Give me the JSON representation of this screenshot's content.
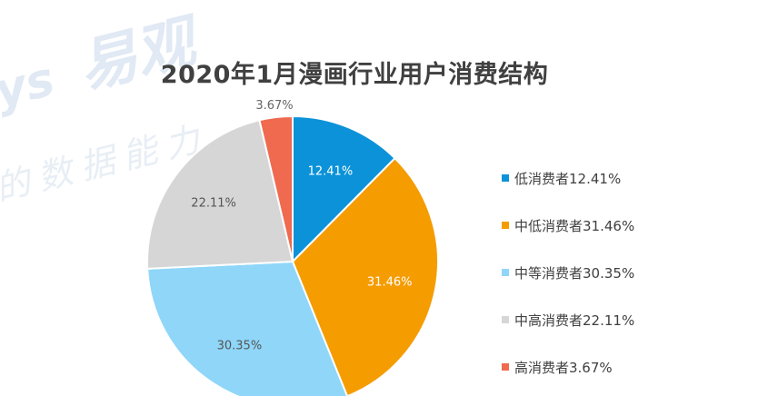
{
  "watermark": {
    "line1": "易观",
    "line1_prefix": "ys",
    "line2": "的数据能力"
  },
  "chart_data": {
    "type": "pie",
    "title": "2020年1月漫画行业用户消费结构",
    "slices": [
      {
        "label": "低消费者12.41%",
        "value": 12.41,
        "data_label": "12.41%",
        "color": "#0b92d9",
        "label_color": "#ffffff"
      },
      {
        "label": "中低消费者31.46%",
        "value": 31.46,
        "data_label": "31.46%",
        "color": "#f59c00",
        "label_color": "#ffffff"
      },
      {
        "label": "中等消费者30.35%",
        "value": 30.35,
        "data_label": "30.35%",
        "color": "#8fd6f9",
        "label_color": "#555555"
      },
      {
        "label": "中高消费者22.11%",
        "value": 22.11,
        "data_label": "22.11%",
        "color": "#d6d6d6",
        "label_color": "#555555"
      },
      {
        "label": "高消费者3.67%",
        "value": 3.67,
        "data_label": "3.67%",
        "color": "#ef6a4f",
        "label_color": "#666666"
      }
    ],
    "start": "12 o'clock",
    "direction": "clockwise",
    "legend_position": "right"
  }
}
